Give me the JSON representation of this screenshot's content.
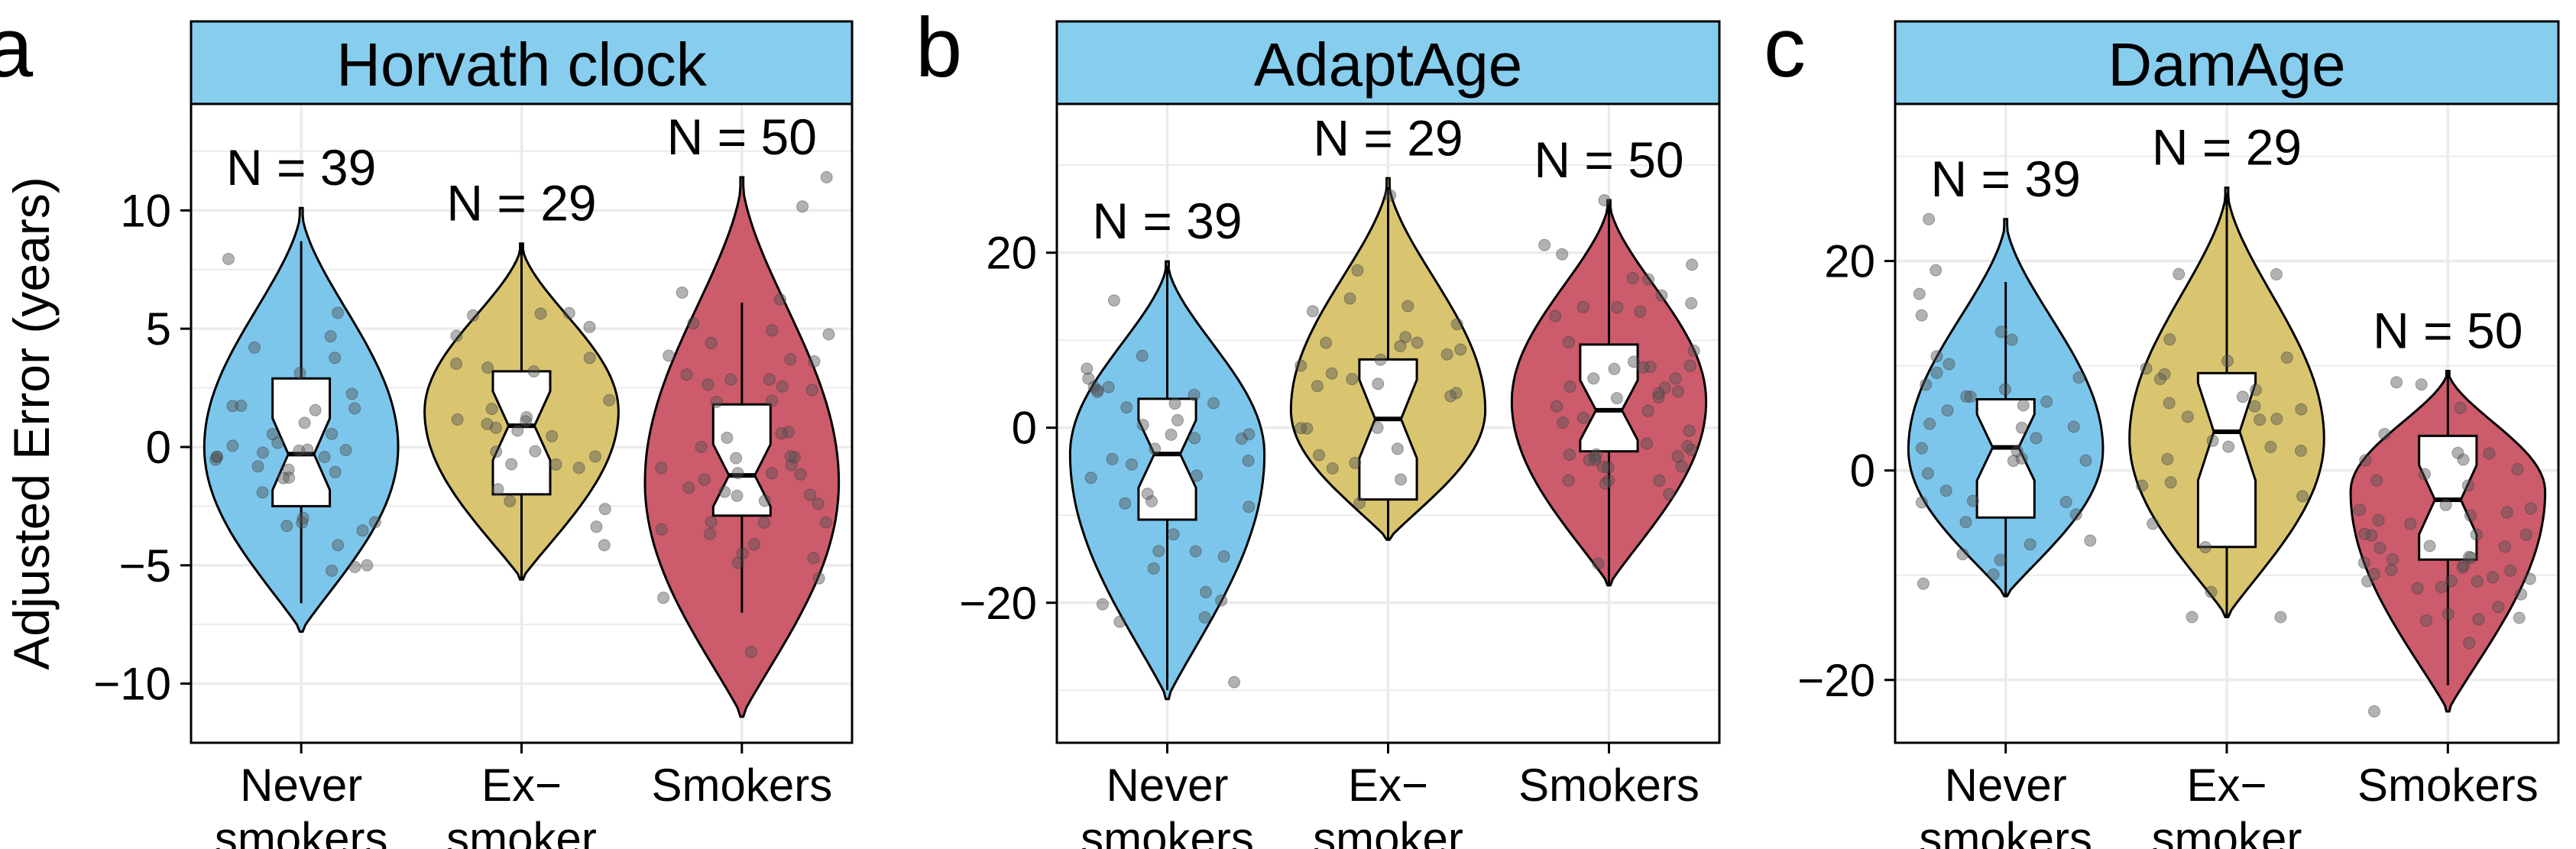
{
  "colors": {
    "never": "#7CC6EC",
    "ex": "#D9C56F",
    "smoker": "#CC5B6C",
    "strip": "#87CDEE",
    "grid": "#EBEBEB",
    "point": "#555555"
  },
  "chart_data": [
    {
      "type": "violin",
      "panel_label": "a",
      "title": "Horvath clock",
      "ylabel": "Adjusted Error (years)",
      "ylim": [
        -12.5,
        14.5
      ],
      "yticks": [
        -10,
        -5,
        0,
        5,
        10
      ],
      "categories": [
        "Never smokers",
        "Ex− smoker",
        "Smokers"
      ],
      "category_lines": [
        [
          "Never",
          "smokers"
        ],
        [
          "Ex−",
          "smoker"
        ],
        [
          "Smokers"
        ]
      ],
      "n_labels": [
        "N = 39",
        "N = 29",
        "N = 50"
      ],
      "series": [
        {
          "category": "Never smokers",
          "n": 39,
          "violin_range": [
            -7.8,
            10.1
          ],
          "mode": 0,
          "whiskers": [
            -6.6,
            8.7
          ],
          "box": {
            "q1": -2.5,
            "median": -0.3,
            "q3": 2.9
          }
        },
        {
          "category": "Ex− smoker",
          "n": 29,
          "violin_range": [
            -5.6,
            8.6
          ],
          "mode": 1.5,
          "whiskers": [
            -5.6,
            8.6
          ],
          "box": {
            "q1": -2.0,
            "median": 0.9,
            "q3": 3.2
          }
        },
        {
          "category": "Smokers",
          "n": 50,
          "violin_range": [
            -11.4,
            11.4
          ],
          "mode": -1.5,
          "whiskers": [
            -7.0,
            6.1
          ],
          "box": {
            "q1": -2.9,
            "median": -1.2,
            "q3": 1.8
          }
        }
      ]
    },
    {
      "type": "violin",
      "panel_label": "b",
      "title": "AdaptAge",
      "ylabel": "",
      "ylim": [
        -36,
        37
      ],
      "yticks": [
        -20,
        0,
        20
      ],
      "categories": [
        "Never smokers",
        "Ex− smoker",
        "Smokers"
      ],
      "category_lines": [
        [
          "Never",
          "smokers"
        ],
        [
          "Ex−",
          "smoker"
        ],
        [
          "Smokers"
        ]
      ],
      "n_labels": [
        "N = 39",
        "N = 29",
        "N = 50"
      ],
      "series": [
        {
          "category": "Never smokers",
          "n": 39,
          "violin_range": [
            -31,
            19
          ],
          "mode": -3,
          "whiskers": [
            -30,
            18.5
          ],
          "box": {
            "q1": -10.5,
            "median": -3.0,
            "q3": 3.3
          }
        },
        {
          "category": "Ex− smoker",
          "n": 29,
          "violin_range": [
            -12.8,
            28.5
          ],
          "mode": 2,
          "whiskers": [
            -12.8,
            27.5
          ],
          "box": {
            "q1": -8.2,
            "median": 1.0,
            "q3": 7.8
          }
        },
        {
          "category": "Smokers",
          "n": 50,
          "violin_range": [
            -18,
            26
          ],
          "mode": 3,
          "whiskers": [
            -18,
            26
          ],
          "box": {
            "q1": -2.7,
            "median": 2.0,
            "q3": 9.5
          }
        }
      ]
    },
    {
      "type": "violin",
      "panel_label": "c",
      "title": "DamAge",
      "ylabel": "",
      "ylim": [
        -26,
        35
      ],
      "yticks": [
        -20,
        0,
        20
      ],
      "categories": [
        "Never smokers",
        "Ex− smoker",
        "Smokers"
      ],
      "category_lines": [
        [
          "Never",
          "smokers"
        ],
        [
          "Ex−",
          "smoker"
        ],
        [
          "Smokers"
        ]
      ],
      "n_labels": [
        "N = 39",
        "N = 29",
        "N = 50"
      ],
      "series": [
        {
          "category": "Never smokers",
          "n": 39,
          "violin_range": [
            -12,
            24
          ],
          "mode": 2,
          "whiskers": [
            -12,
            18
          ],
          "box": {
            "q1": -4.5,
            "median": 2.2,
            "q3": 6.8
          }
        },
        {
          "category": "Ex− smoker",
          "n": 29,
          "violin_range": [
            -14,
            27
          ],
          "mode": 3,
          "whiskers": [
            -14,
            26.5
          ],
          "box": {
            "q1": -7.3,
            "median": 3.7,
            "q3": 9.3
          }
        },
        {
          "category": "Smokers",
          "n": 50,
          "violin_range": [
            -23,
            9.5
          ],
          "mode": -2,
          "whiskers": [
            -20.5,
            9.5
          ],
          "box": {
            "q1": -8.5,
            "median": -2.8,
            "q3": 3.3
          }
        }
      ]
    }
  ]
}
